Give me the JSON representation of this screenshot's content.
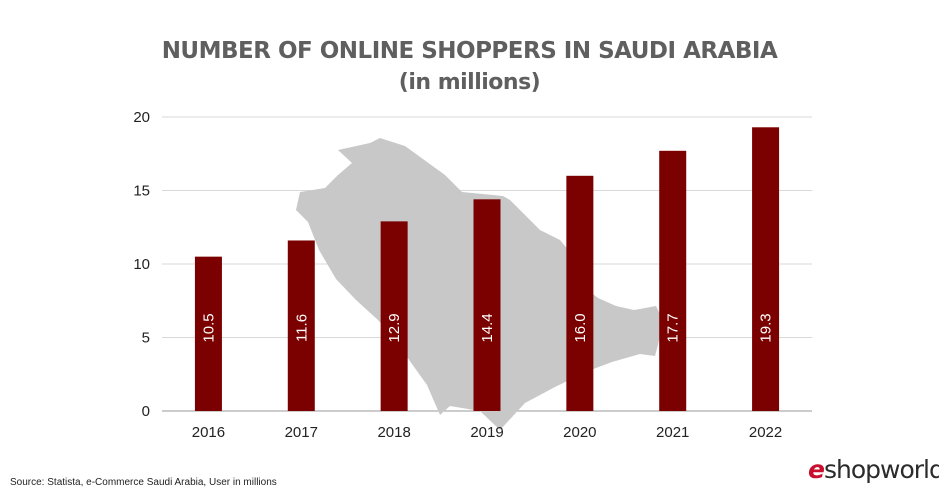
{
  "chart_data": {
    "type": "bar",
    "title": "NUMBER OF ONLINE SHOPPERS IN SAUDI ARABIA",
    "subtitle": "(in millions)",
    "categories": [
      "2016",
      "2017",
      "2018",
      "2019",
      "2020",
      "2021",
      "2022"
    ],
    "values": [
      10.5,
      11.6,
      12.9,
      14.4,
      16.0,
      17.7,
      19.3
    ],
    "value_labels": [
      "10.5",
      "11.6",
      "12.9",
      "14.4",
      "16.0",
      "17.7",
      "19.3"
    ],
    "ylim": [
      0,
      20
    ],
    "yticks": [
      "0",
      "5",
      "10",
      "15",
      "20"
    ],
    "grid": true,
    "bar_color": "#7b0000",
    "map_color": "#c8c8c8"
  },
  "footer": {
    "source": "Source: Statista, e-Commerce Saudi Arabia, User in millions"
  },
  "brand": {
    "logo_e": "e",
    "logo_rest": "shopworld",
    "accent": "#c8102e"
  }
}
